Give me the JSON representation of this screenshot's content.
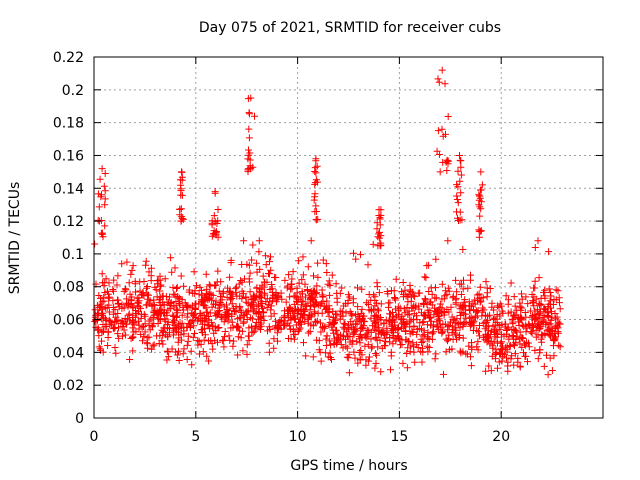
{
  "chart_data": {
    "type": "scatter",
    "title": "Day 075 of 2021, SRMTID for receiver cubs",
    "xlabel": "GPS time / hours",
    "ylabel": "SRMTID / TECUs",
    "xlim": [
      0,
      25
    ],
    "ylim": [
      0,
      0.22
    ],
    "grid": true,
    "marker": "+",
    "legend": "none",
    "x_ticks": [
      0,
      5,
      10,
      15,
      20
    ],
    "x_tick_labels": [
      "0",
      "5",
      "10",
      "15",
      "20"
    ],
    "y_ticks": [
      0,
      0.02,
      0.04,
      0.06,
      0.08,
      0.1,
      0.12,
      0.14,
      0.16,
      0.18,
      0.2,
      0.22
    ],
    "y_tick_labels": [
      "0",
      "0.02",
      "0.04",
      "0.06",
      "0.08",
      "0.1",
      "0.12",
      "0.14",
      "0.16",
      "0.18",
      "0.2",
      "0.22"
    ],
    "series": [
      {
        "name": "SRMTID",
        "color": "#ff0000",
        "x_range": [
          0,
          22.9
        ],
        "baseline": [
          [
            0,
            0.063
          ],
          [
            2,
            0.066
          ],
          [
            4,
            0.063
          ],
          [
            6,
            0.062
          ],
          [
            8,
            0.07
          ],
          [
            10,
            0.066
          ],
          [
            11,
            0.068
          ],
          [
            12,
            0.058
          ],
          [
            13,
            0.055
          ],
          [
            14,
            0.056
          ],
          [
            15,
            0.058
          ],
          [
            16,
            0.06
          ],
          [
            17,
            0.058
          ],
          [
            18,
            0.062
          ],
          [
            19,
            0.06
          ],
          [
            20,
            0.048
          ],
          [
            21,
            0.056
          ],
          [
            22,
            0.062
          ],
          [
            22.9,
            0.052
          ]
        ],
        "bursts": [
          {
            "x": [
              0.2,
              0.6
            ],
            "y": [
              0.11,
              0.152
            ]
          },
          {
            "x": [
              4.2,
              4.4
            ],
            "y": [
              0.12,
              0.15
            ]
          },
          {
            "x": [
              5.8,
              6.1
            ],
            "y": [
              0.11,
              0.138
            ]
          },
          {
            "x": [
              7.5,
              7.9
            ],
            "y": [
              0.15,
              0.195
            ]
          },
          {
            "x": [
              10.8,
              11.0
            ],
            "y": [
              0.12,
              0.158
            ]
          },
          {
            "x": [
              13.9,
              14.1
            ],
            "y": [
              0.105,
              0.127
            ]
          },
          {
            "x": [
              16.8,
              17.4
            ],
            "y": [
              0.15,
              0.212
            ]
          },
          {
            "x": [
              17.8,
              18.1
            ],
            "y": [
              0.12,
              0.16
            ]
          },
          {
            "x": [
              18.9,
              19.1
            ],
            "y": [
              0.11,
              0.15
            ]
          }
        ]
      }
    ]
  }
}
